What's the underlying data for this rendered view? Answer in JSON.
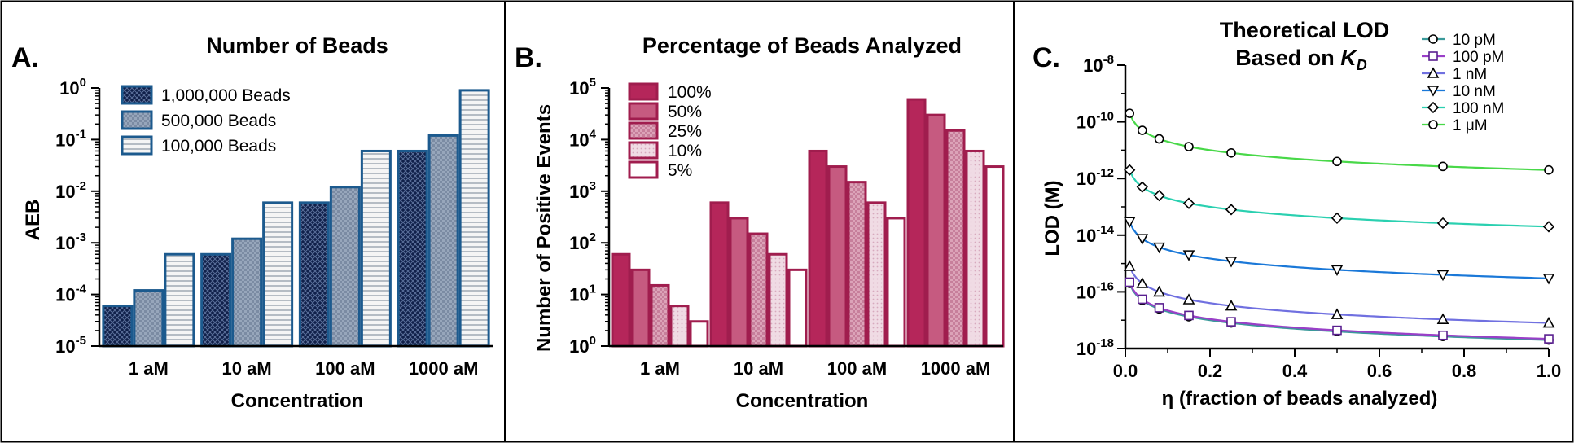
{
  "chart_data": [
    {
      "panel_letter": "A.",
      "type": "bar",
      "title": "Number of Beads",
      "xlabel": "Concentration",
      "ylabel": "AEB",
      "yscale": "log",
      "ylim": [
        1e-05,
        1
      ],
      "y_ticks": [
        {
          "value": 1e-05,
          "base": "10",
          "exp": "-5"
        },
        {
          "value": 0.0001,
          "base": "10",
          "exp": "-4"
        },
        {
          "value": 0.001,
          "base": "10",
          "exp": "-3"
        },
        {
          "value": 0.01,
          "base": "10",
          "exp": "-2"
        },
        {
          "value": 0.1,
          "base": "10",
          "exp": "-1"
        },
        {
          "value": 1,
          "base": "10",
          "exp": "0"
        }
      ],
      "categories": [
        "1 aM",
        "10 aM",
        "100 aM",
        "1000 aM"
      ],
      "legend_position": "top-left",
      "series": [
        {
          "name": "1,000,000 Beads",
          "fill": "#10204a",
          "pattern": "crosshatch",
          "stroke": "#1c5a8e",
          "values": [
            6e-05,
            0.0006,
            0.006,
            0.06
          ]
        },
        {
          "name": "500,000 Beads",
          "fill": "#8a9ab0",
          "pattern": "checker",
          "stroke": "#1c5a8e",
          "values": [
            0.00012,
            0.0012,
            0.012,
            0.12
          ]
        },
        {
          "name": "100,000 Beads",
          "fill": "#f2f2f2",
          "pattern": "horizontal-lines",
          "stroke": "#1c5a8e",
          "values": [
            0.0006,
            0.006,
            0.06,
            0.9
          ]
        }
      ]
    },
    {
      "panel_letter": "B.",
      "type": "bar",
      "title": "Percentage of Beads Analyzed",
      "xlabel": "Concentration",
      "ylabel": "Number of Positive Events",
      "yscale": "log",
      "ylim": [
        1,
        100000
      ],
      "y_ticks": [
        {
          "value": 1,
          "base": "10",
          "exp": "0"
        },
        {
          "value": 10,
          "base": "10",
          "exp": "1"
        },
        {
          "value": 100,
          "base": "10",
          "exp": "2"
        },
        {
          "value": 1000,
          "base": "10",
          "exp": "3"
        },
        {
          "value": 10000,
          "base": "10",
          "exp": "4"
        },
        {
          "value": 100000,
          "base": "10",
          "exp": "5"
        }
      ],
      "categories": [
        "1 aM",
        "10 aM",
        "100 aM",
        "1000 aM"
      ],
      "legend_position": "top-left",
      "series": [
        {
          "name": "100%",
          "fill": "#b5265a",
          "pattern": "solid",
          "stroke": "#a01d4e",
          "values": [
            60,
            600,
            6000,
            60000
          ]
        },
        {
          "name": "50%",
          "fill": "#c65a80",
          "pattern": "solid",
          "stroke": "#a01d4e",
          "values": [
            30,
            300,
            3000,
            30000
          ]
        },
        {
          "name": "25%",
          "fill": "#d494ab",
          "pattern": "checker",
          "stroke": "#a01d4e",
          "values": [
            15,
            150,
            1500,
            15000
          ]
        },
        {
          "name": "10%",
          "fill": "#ecd0dc",
          "pattern": "dots",
          "stroke": "#a01d4e",
          "values": [
            6,
            60,
            600,
            6000
          ]
        },
        {
          "name": "5%",
          "fill": "#ffffff",
          "pattern": "solid",
          "stroke": "#a01d4e",
          "values": [
            3,
            30,
            300,
            3000
          ]
        }
      ]
    },
    {
      "panel_letter": "C.",
      "type": "line",
      "title_line1": "Theoretical LOD",
      "title_line2": "Based on ",
      "title_kd": "K",
      "title_kd_sub": "D",
      "xlabel": "η (fraction of beads analyzed)",
      "ylabel": "LOD (M)",
      "yscale": "log",
      "xlim": [
        0,
        1
      ],
      "ylim": [
        1e-18,
        1e-08
      ],
      "x_ticks": [
        {
          "value": 0.0,
          "label": "0.0"
        },
        {
          "value": 0.2,
          "label": "0.2"
        },
        {
          "value": 0.4,
          "label": "0.4"
        },
        {
          "value": 0.6,
          "label": "0.6"
        },
        {
          "value": 0.8,
          "label": "0.8"
        },
        {
          "value": 1.0,
          "label": "1.0"
        }
      ],
      "y_ticks": [
        {
          "value": 1e-18,
          "base": "10",
          "exp": "-18"
        },
        {
          "value": 1e-16,
          "base": "10",
          "exp": "-16"
        },
        {
          "value": 1e-14,
          "base": "10",
          "exp": "-14"
        },
        {
          "value": 1e-12,
          "base": "10",
          "exp": "-12"
        },
        {
          "value": 1e-10,
          "base": "10",
          "exp": "-10"
        },
        {
          "value": 1e-08,
          "base": "10",
          "exp": "-8"
        }
      ],
      "legend_position": "top-right",
      "x": [
        0.01,
        0.04,
        0.08,
        0.15,
        0.25,
        0.5,
        0.75,
        1.0
      ],
      "series": [
        {
          "name": "10 pM",
          "color": "#3a9a9a",
          "marker": "circle",
          "values": [
            2e-16,
            5e-17,
            2.5e-17,
            1.33e-17,
            8e-18,
            4e-18,
            2.67e-18,
            2e-18
          ]
        },
        {
          "name": "100 pM",
          "color": "#9a3fc8",
          "marker": "square",
          "values": [
            2.2e-16,
            5.5e-17,
            2.75e-17,
            1.47e-17,
            8.8e-18,
            4.4e-18,
            2.93e-18,
            2.2e-18
          ]
        },
        {
          "name": "1 nM",
          "color": "#7070e0",
          "marker": "triangle-up",
          "values": [
            8e-16,
            2e-16,
            1e-16,
            5.3e-17,
            3.2e-17,
            1.6e-17,
            1.07e-17,
            8e-18
          ]
        },
        {
          "name": "10 nM",
          "color": "#1a78d8",
          "marker": "triangle-down",
          "values": [
            3e-14,
            7.5e-15,
            3.75e-15,
            2e-15,
            1.2e-15,
            6e-16,
            4e-16,
            3e-16
          ]
        },
        {
          "name": "100 nM",
          "color": "#2ad0b0",
          "marker": "diamond",
          "values": [
            2e-12,
            5e-13,
            2.5e-13,
            1.33e-13,
            8e-14,
            4e-14,
            2.67e-14,
            2e-14
          ]
        },
        {
          "name": "1 μM",
          "color": "#48d848",
          "marker": "circle",
          "values": [
            2e-10,
            5e-11,
            2.5e-11,
            1.33e-11,
            8e-12,
            4e-12,
            2.67e-12,
            2e-12
          ]
        }
      ]
    }
  ]
}
